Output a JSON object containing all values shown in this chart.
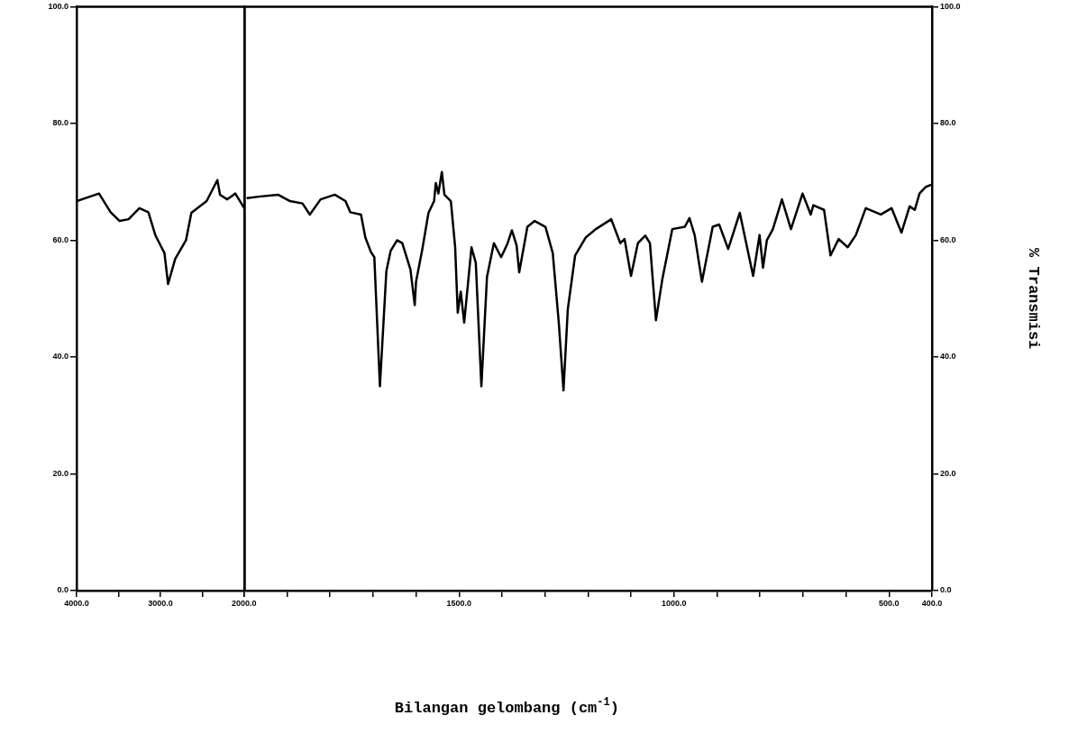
{
  "chart_data": [
    {
      "type": "line",
      "marker": "none",
      "grid": false,
      "xlim": [
        4000,
        2000
      ],
      "xticks": [
        {
          "value": 4000,
          "label": "4000.0"
        },
        {
          "value": 3500,
          "label": null
        },
        {
          "value": 3000,
          "label": "3000.0"
        },
        {
          "value": 2500,
          "label": null
        },
        {
          "value": 2000,
          "label": null
        }
      ],
      "ylim": [
        0,
        100
      ],
      "yticks": [
        {
          "value": 0,
          "label": "0.0"
        },
        {
          "value": 20,
          "label": "20.0"
        },
        {
          "value": 40,
          "label": "40.0"
        },
        {
          "value": 60,
          "label": "60.0"
        },
        {
          "value": 80,
          "label": "80.0"
        },
        {
          "value": 100,
          "label": "100.0"
        }
      ],
      "series": [
        {
          "color": "#000000",
          "x": [
            4000,
            3733,
            3594,
            3487,
            3380,
            3251,
            3144,
            3059,
            2952,
            2909,
            2824,
            2695,
            2631,
            2449,
            2321,
            2289,
            2203,
            2107,
            2000
          ],
          "values": [
            66.7,
            68,
            64.8,
            63.3,
            63.6,
            65.5,
            64.8,
            60.8,
            57.8,
            52.5,
            56.8,
            60,
            64.7,
            66.7,
            70.3,
            67.8,
            67,
            68,
            65.5
          ]
        }
      ]
    },
    {
      "type": "line",
      "marker": "none",
      "grid": false,
      "xlabel": "Bilangan gelombang (cm$^{-1}$)",
      "y2label": "% Transmisi",
      "xlim": [
        2000,
        400
      ],
      "xticks": [
        {
          "value": 2000,
          "label": "2000.0"
        },
        {
          "value": 1900,
          "label": null
        },
        {
          "value": 1800,
          "label": null
        },
        {
          "value": 1700,
          "label": null
        },
        {
          "value": 1600,
          "label": null
        },
        {
          "value": 1500,
          "label": "1500.0"
        },
        {
          "value": 1400,
          "label": null
        },
        {
          "value": 1300,
          "label": null
        },
        {
          "value": 1200,
          "label": null
        },
        {
          "value": 1100,
          "label": null
        },
        {
          "value": 1000,
          "label": "1000.0"
        },
        {
          "value": 900,
          "label": null
        },
        {
          "value": 800,
          "label": null
        },
        {
          "value": 700,
          "label": null
        },
        {
          "value": 600,
          "label": null
        },
        {
          "value": 500,
          "label": "500.0"
        },
        {
          "value": 400,
          "label": "400.0"
        }
      ],
      "y2lim": [
        0,
        100
      ],
      "y2ticks": [
        {
          "value": 0,
          "label": "0.0"
        },
        {
          "value": 20,
          "label": "20.0"
        },
        {
          "value": 40,
          "label": "40.0"
        },
        {
          "value": 60,
          "label": "60.0"
        },
        {
          "value": 80,
          "label": "80.0"
        },
        {
          "value": 100,
          "label": "100.0"
        }
      ],
      "series": [
        {
          "color": "#000000",
          "axis": "y2",
          "x": [
            1994,
            1962,
            1921,
            1893,
            1864,
            1847,
            1822,
            1789,
            1764,
            1753,
            1728,
            1718,
            1705,
            1697,
            1684,
            1669,
            1659,
            1644,
            1632,
            1613,
            1603,
            1600,
            1586,
            1571,
            1558,
            1554,
            1548,
            1540,
            1534,
            1519,
            1509,
            1503,
            1496,
            1488,
            1471,
            1461,
            1448,
            1435,
            1419,
            1402,
            1387,
            1377,
            1366,
            1360,
            1341,
            1324,
            1299,
            1282,
            1268,
            1257,
            1247,
            1230,
            1205,
            1182,
            1146,
            1125,
            1115,
            1100,
            1084,
            1067,
            1056,
            1042,
            1027,
            1004,
            975,
            964,
            952,
            935,
            910,
            895,
            874,
            847,
            816,
            801,
            793,
            784,
            770,
            749,
            728,
            701,
            682,
            676,
            651,
            636,
            617,
            596,
            577,
            554,
            519,
            494,
            471,
            452,
            440,
            429,
            415,
            402
          ],
          "values": [
            67.2,
            67.5,
            67.8,
            66.7,
            66.3,
            64.4,
            67,
            67.8,
            66.7,
            64.8,
            64.4,
            60.5,
            58,
            57.1,
            35,
            54.7,
            58.2,
            60,
            59.5,
            55,
            48.9,
            52.9,
            58.2,
            64.7,
            66.7,
            69.8,
            68,
            71.7,
            67.8,
            66.7,
            58.8,
            47.6,
            51.2,
            45.9,
            58.8,
            56.1,
            35,
            53.7,
            59.5,
            57.1,
            59.5,
            61.7,
            59.1,
            54.5,
            62.3,
            63.3,
            62.3,
            57.8,
            45.9,
            34.3,
            48.2,
            57.4,
            60.5,
            61.9,
            63.6,
            59.5,
            60.2,
            53.9,
            59.5,
            60.8,
            59.5,
            46.3,
            53.4,
            61.9,
            62.3,
            63.8,
            60.9,
            52.9,
            62.3,
            62.7,
            58.5,
            64.7,
            53.9,
            60.9,
            55.3,
            60,
            61.9,
            67,
            61.9,
            68,
            64.4,
            66,
            65.2,
            57.4,
            60.2,
            58.8,
            60.9,
            65.5,
            64.4,
            65.5,
            61.3,
            65.8,
            65.2,
            68,
            69.1,
            69.5
          ]
        }
      ]
    }
  ]
}
